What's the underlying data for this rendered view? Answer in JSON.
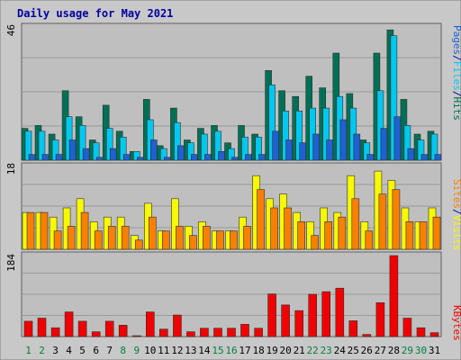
{
  "title": "Daily usage for May 2021",
  "colors": {
    "frame_bg": "#c8c8c8",
    "plot_bg": "#bfbfbf",
    "grid": "#9a9a9a",
    "title": "#0000a0",
    "hits": "#007055",
    "files": "#00c8f0",
    "pages": "#2060d0",
    "visits": "#f8f800",
    "sites": "#f88000",
    "kbytes": "#f00000",
    "weekday": "#000000",
    "weekend": "#008040"
  },
  "axis": {
    "top_max_label": "46",
    "mid_max_label": "18",
    "bottom_max_label": "184"
  },
  "legends": {
    "top": [
      {
        "text": "Pages",
        "color_key": "pages"
      },
      {
        "text": "/",
        "color_key": "title"
      },
      {
        "text": "Files",
        "color_key": "files"
      },
      {
        "text": "/",
        "color_key": "title"
      },
      {
        "text": "Hits",
        "color_key": "hits"
      }
    ],
    "mid": [
      {
        "text": "Sites",
        "color_key": "sites"
      },
      {
        "text": "/",
        "color_key": "title"
      },
      {
        "text": "Visits",
        "color_key": "visits"
      }
    ],
    "bottom": [
      {
        "text": "KBytes",
        "color_key": "kbytes"
      }
    ]
  },
  "chart_data": {
    "type": "bar",
    "title": "Daily usage for May 2021",
    "categories": [
      "1",
      "2",
      "3",
      "4",
      "5",
      "6",
      "7",
      "8",
      "9",
      "10",
      "11",
      "12",
      "13",
      "14",
      "15",
      "16",
      "17",
      "18",
      "19",
      "20",
      "21",
      "22",
      "23",
      "24",
      "25",
      "26",
      "27",
      "28",
      "29",
      "30",
      "31"
    ],
    "weekend_days": [
      "1",
      "2",
      "8",
      "9",
      "15",
      "16",
      "22",
      "23",
      "29",
      "30"
    ],
    "panels": [
      {
        "name": "top",
        "ylim": [
          0,
          46
        ],
        "series": [
          {
            "name": "Hits",
            "color_key": "hits",
            "values": [
              11,
              12,
              9,
              24,
              15,
              7,
              19,
              10,
              3,
              21,
              5,
              18,
              7,
              11,
              12,
              6,
              12,
              9,
              31,
              24,
              22,
              29,
              25,
              37,
              23,
              7,
              37,
              45,
              21,
              9,
              10
            ]
          },
          {
            "name": "Files",
            "color_key": "files",
            "values": [
              10,
              10,
              7,
              15,
              12,
              6,
              11,
              8,
              3,
              14,
              4,
              13,
              6,
              9,
              10,
              4,
              8,
              8,
              26,
              17,
              17,
              18,
              18,
              22,
              18,
              6,
              24,
              43,
              12,
              7,
              9
            ]
          },
          {
            "name": "Pages",
            "color_key": "pages",
            "values": [
              2,
              2,
              2,
              7,
              4,
              1,
              4,
              2,
              1,
              7,
              1,
              5,
              2,
              2,
              3,
              1,
              2,
              2,
              10,
              7,
              6,
              9,
              7,
              14,
              9,
              2,
              11,
              15,
              4,
              2,
              2
            ]
          }
        ]
      },
      {
        "name": "middle",
        "ylim": [
          0,
          18
        ],
        "series": [
          {
            "name": "Visits",
            "color_key": "visits",
            "values": [
              8,
              8,
              7,
              9,
              11,
              6,
              7,
              7,
              3,
              10,
              4,
              11,
              5,
              6,
              4,
              4,
              7,
              16,
              11,
              12,
              8,
              6,
              9,
              8,
              16,
              6,
              17,
              15,
              9,
              6,
              9
            ]
          },
          {
            "name": "Sites",
            "color_key": "sites",
            "values": [
              8,
              8,
              4,
              5,
              8,
              4,
              5,
              5,
              2,
              7,
              4,
              5,
              3,
              5,
              4,
              4,
              5,
              13,
              9,
              9,
              6,
              3,
              6,
              7,
              11,
              4,
              12,
              13,
              6,
              6,
              7
            ]
          }
        ]
      },
      {
        "name": "bottom",
        "ylim": [
          0,
          184
        ],
        "series": [
          {
            "name": "KBytes",
            "color_key": "kbytes",
            "values": [
              35,
              42,
              20,
              56,
              35,
              11,
              35,
              26,
              2,
              56,
              17,
              49,
              11,
              19,
              19,
              19,
              28,
              19,
              97,
              72,
              59,
              96,
              102,
              110,
              36,
              5,
              77,
              184,
              42,
              20,
              9
            ]
          }
        ]
      }
    ]
  }
}
